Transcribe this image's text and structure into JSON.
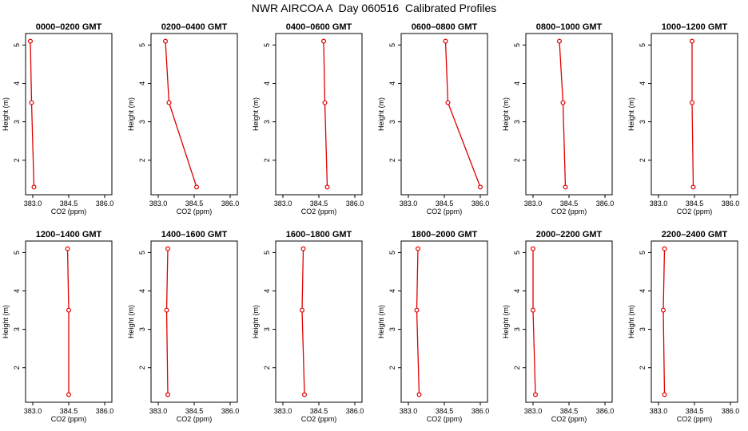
{
  "title": "NWR AIRCOA A  Day 060516  Calibrated Profiles",
  "colors": {
    "series": "#e00000",
    "frame": "#000000"
  },
  "chart_data": {
    "type": "line",
    "title": "NWR AIRCOA A  Day 060516  Calibrated Profiles",
    "xlabel": "CO2 (ppm)",
    "ylabel": "Height (m)",
    "xlim": [
      382.7,
      386.3
    ],
    "ylim": [
      1.1,
      5.3
    ],
    "xticks": [
      "383.0",
      "384.5",
      "386.0"
    ],
    "yticks": [
      "2",
      "3",
      "4",
      "5"
    ],
    "heights": [
      5.1,
      3.5,
      1.3
    ],
    "panels": [
      {
        "title": "0000–0200 GMT",
        "co2": [
          382.9,
          382.95,
          383.05
        ]
      },
      {
        "title": "0200–0400 GMT",
        "co2": [
          383.3,
          383.45,
          384.6
        ]
      },
      {
        "title": "0400–0600 GMT",
        "co2": [
          384.7,
          384.75,
          384.85
        ]
      },
      {
        "title": "0600–0800 GMT",
        "co2": [
          384.55,
          384.65,
          386.0
        ]
      },
      {
        "title": "0800–1000 GMT",
        "co2": [
          384.1,
          384.25,
          384.35
        ]
      },
      {
        "title": "1000–1200 GMT",
        "co2": [
          384.4,
          384.4,
          384.45
        ]
      },
      {
        "title": "1200–1400 GMT",
        "co2": [
          384.45,
          384.5,
          384.5
        ]
      },
      {
        "title": "1400–1600 GMT",
        "co2": [
          383.4,
          383.35,
          383.4
        ]
      },
      {
        "title": "1600–1800 GMT",
        "co2": [
          383.85,
          383.8,
          383.9
        ]
      },
      {
        "title": "1800–2000 GMT",
        "co2": [
          383.4,
          383.35,
          383.45
        ]
      },
      {
        "title": "2000–2200 GMT",
        "co2": [
          383.0,
          383.0,
          383.1
        ]
      },
      {
        "title": "2200–2400 GMT",
        "co2": [
          383.25,
          383.2,
          383.25
        ]
      }
    ]
  }
}
